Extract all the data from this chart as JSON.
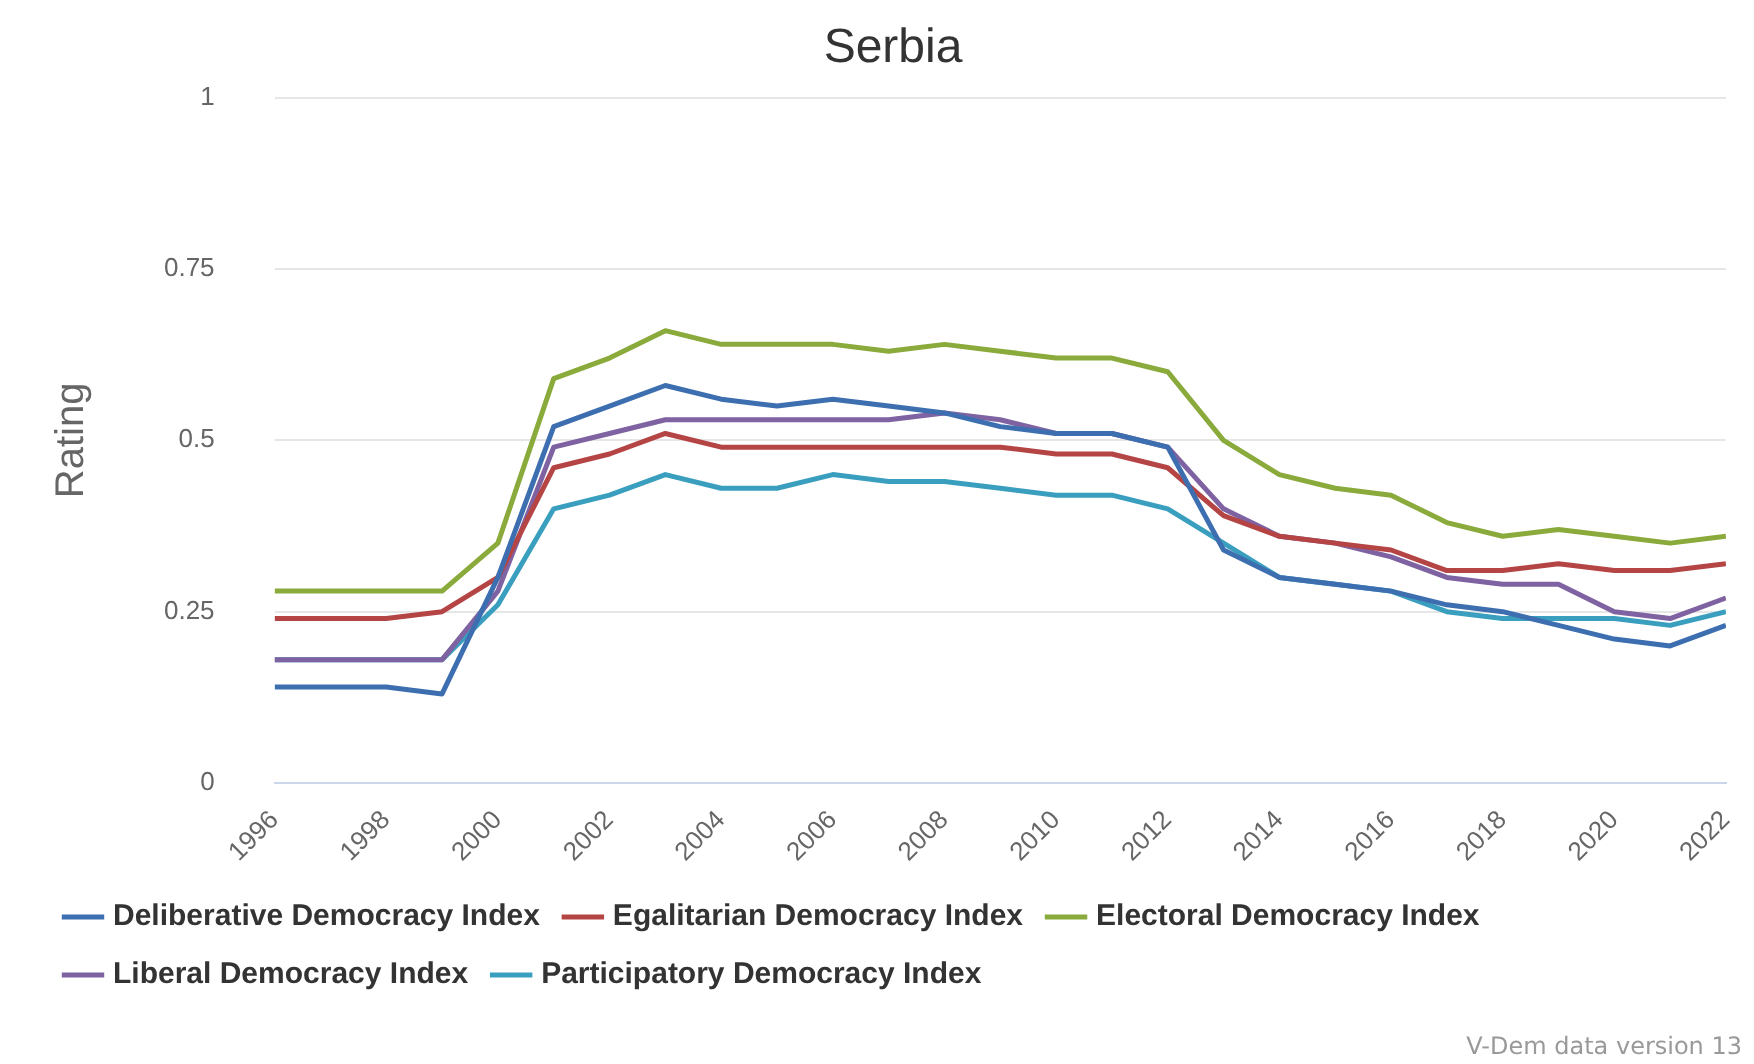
{
  "chart_data": {
    "type": "line",
    "title": "Serbia",
    "ylabel": "Rating",
    "annotations": [
      "V-Dem data version 13"
    ],
    "x": [
      1996,
      1997,
      1998,
      1999,
      2000,
      2001,
      2002,
      2003,
      2004,
      2005,
      2006,
      2007,
      2008,
      2009,
      2010,
      2011,
      2012,
      2013,
      2014,
      2015,
      2016,
      2017,
      2018,
      2019,
      2020,
      2021,
      2022
    ],
    "xlim": [
      1996,
      2022
    ],
    "xticks": [
      1996,
      1998,
      2000,
      2002,
      2004,
      2006,
      2008,
      2010,
      2012,
      2014,
      2016,
      2018,
      2020,
      2022
    ],
    "ylim": [
      0,
      1
    ],
    "yticks": [
      0,
      0.25,
      0.5,
      0.75,
      1
    ],
    "grid": "y",
    "legend": "bottom",
    "marker": "none",
    "series": [
      {
        "name": "Deliberative Democracy Index",
        "color": "#3d6fb0",
        "values": [
          0.14,
          0.14,
          0.14,
          0.13,
          0.3,
          0.52,
          0.55,
          0.58,
          0.56,
          0.55,
          0.56,
          0.55,
          0.54,
          0.52,
          0.51,
          0.51,
          0.49,
          0.34,
          0.3,
          0.29,
          0.28,
          0.26,
          0.25,
          0.23,
          0.21,
          0.2,
          0.23
        ]
      },
      {
        "name": "Egalitarian Democracy Index",
        "color": "#b54545",
        "values": [
          0.24,
          0.24,
          0.24,
          0.25,
          0.3,
          0.46,
          0.48,
          0.51,
          0.49,
          0.49,
          0.49,
          0.49,
          0.49,
          0.49,
          0.48,
          0.48,
          0.46,
          0.39,
          0.36,
          0.35,
          0.34,
          0.31,
          0.31,
          0.32,
          0.31,
          0.31,
          0.32
        ]
      },
      {
        "name": "Electoral Democracy Index",
        "color": "#8aaa3c",
        "values": [
          0.28,
          0.28,
          0.28,
          0.28,
          0.35,
          0.59,
          0.62,
          0.66,
          0.64,
          0.64,
          0.64,
          0.63,
          0.64,
          0.63,
          0.62,
          0.62,
          0.6,
          0.5,
          0.45,
          0.43,
          0.42,
          0.38,
          0.36,
          0.37,
          0.36,
          0.35,
          0.36
        ]
      },
      {
        "name": "Liberal Democracy Index",
        "color": "#7e62a1",
        "values": [
          0.18,
          0.18,
          0.18,
          0.18,
          0.28,
          0.49,
          0.51,
          0.53,
          0.53,
          0.53,
          0.53,
          0.53,
          0.54,
          0.53,
          0.51,
          0.51,
          0.49,
          0.4,
          0.36,
          0.35,
          0.33,
          0.3,
          0.29,
          0.29,
          0.25,
          0.24,
          0.27
        ]
      },
      {
        "name": "Participatory Democracy Index",
        "color": "#3a9fbf",
        "values": [
          0.18,
          0.18,
          0.18,
          0.18,
          0.26,
          0.4,
          0.42,
          0.45,
          0.43,
          0.43,
          0.45,
          0.44,
          0.44,
          0.43,
          0.42,
          0.42,
          0.4,
          0.35,
          0.3,
          0.29,
          0.28,
          0.25,
          0.24,
          0.24,
          0.24,
          0.23,
          0.25
        ]
      }
    ]
  }
}
